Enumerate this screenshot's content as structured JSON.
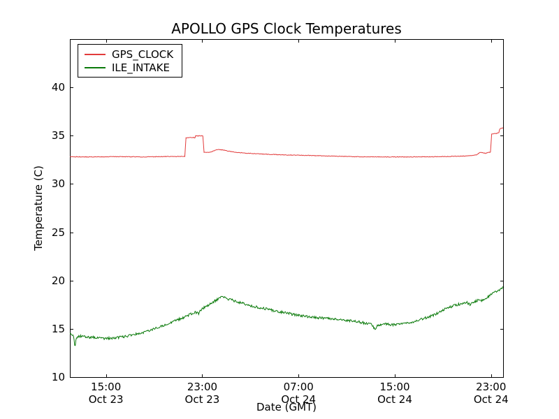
{
  "chart_data": {
    "type": "line",
    "title": "APOLLO GPS Clock Temperatures",
    "xlabel": "Date (GMT)",
    "ylabel": "Temperature (C)",
    "ylim": [
      10,
      45
    ],
    "xlim_hours": [
      0,
      36
    ],
    "x_axis_note": "hours measured from Oct 23 12:00 GMT",
    "grid": false,
    "yticks": [
      10,
      15,
      20,
      25,
      30,
      35,
      40
    ],
    "xticks": [
      {
        "hour": 3,
        "time": "15:00",
        "date": "Oct 23"
      },
      {
        "hour": 11,
        "time": "23:00",
        "date": "Oct 23"
      },
      {
        "hour": 19,
        "time": "07:00",
        "date": "Oct 24"
      },
      {
        "hour": 27,
        "time": "15:00",
        "date": "Oct 24"
      },
      {
        "hour": 35,
        "time": "23:00",
        "date": "Oct 24"
      }
    ],
    "legend": {
      "position": "upper-left",
      "entries": [
        "GPS_CLOCK",
        "ILE_INTAKE"
      ]
    },
    "series": [
      {
        "name": "GPS_CLOCK",
        "color": "#e23b3b",
        "noise": 0.03,
        "points": [
          [
            0,
            32.82
          ],
          [
            2,
            32.8
          ],
          [
            4,
            32.83
          ],
          [
            6,
            32.8
          ],
          [
            8,
            32.84
          ],
          [
            9.55,
            32.85
          ],
          [
            9.65,
            34.78
          ],
          [
            10.3,
            34.82
          ],
          [
            10.38,
            34.7
          ],
          [
            10.45,
            34.98
          ],
          [
            11.05,
            34.98
          ],
          [
            11.15,
            33.28
          ],
          [
            11.7,
            33.3
          ],
          [
            12.3,
            33.58
          ],
          [
            12.8,
            33.5
          ],
          [
            13.5,
            33.32
          ],
          [
            14.5,
            33.2
          ],
          [
            16,
            33.1
          ],
          [
            18,
            33.0
          ],
          [
            20,
            32.95
          ],
          [
            22,
            32.88
          ],
          [
            24,
            32.82
          ],
          [
            26,
            32.8
          ],
          [
            28,
            32.8
          ],
          [
            30,
            32.82
          ],
          [
            31.5,
            32.85
          ],
          [
            33,
            32.9
          ],
          [
            33.8,
            33.0
          ],
          [
            34.1,
            33.28
          ],
          [
            34.5,
            33.18
          ],
          [
            34.95,
            33.3
          ],
          [
            35.05,
            35.18
          ],
          [
            35.45,
            35.22
          ],
          [
            35.55,
            35.3
          ],
          [
            35.65,
            35.3
          ],
          [
            35.72,
            35.72
          ],
          [
            36,
            35.8
          ]
        ]
      },
      {
        "name": "ILE_INTAKE",
        "color": "#0a7a0a",
        "noise": 0.13,
        "points": [
          [
            0,
            14.45
          ],
          [
            0.3,
            14.25
          ],
          [
            0.42,
            13.1
          ],
          [
            0.55,
            14.15
          ],
          [
            1,
            14.25
          ],
          [
            1.5,
            14.15
          ],
          [
            2,
            14.1
          ],
          [
            2.5,
            14.05
          ],
          [
            3,
            14.0
          ],
          [
            3.5,
            14.05
          ],
          [
            4,
            14.1
          ],
          [
            4.5,
            14.2
          ],
          [
            5,
            14.3
          ],
          [
            5.5,
            14.45
          ],
          [
            6,
            14.6
          ],
          [
            6.5,
            14.8
          ],
          [
            7,
            15.0
          ],
          [
            7.5,
            15.2
          ],
          [
            8,
            15.45
          ],
          [
            8.5,
            15.7
          ],
          [
            9,
            15.95
          ],
          [
            9.5,
            16.2
          ],
          [
            10,
            16.5
          ],
          [
            10.4,
            16.75
          ],
          [
            10.7,
            16.6
          ],
          [
            11,
            17.1
          ],
          [
            11.4,
            17.35
          ],
          [
            11.8,
            17.7
          ],
          [
            12.2,
            18.0
          ],
          [
            12.55,
            18.25
          ],
          [
            12.8,
            18.3
          ],
          [
            13.1,
            18.1
          ],
          [
            13.5,
            17.95
          ],
          [
            14,
            17.75
          ],
          [
            14.5,
            17.6
          ],
          [
            15,
            17.4
          ],
          [
            15.5,
            17.25
          ],
          [
            16,
            17.15
          ],
          [
            16.5,
            17.0
          ],
          [
            17,
            16.85
          ],
          [
            17.5,
            16.75
          ],
          [
            18,
            16.65
          ],
          [
            18.5,
            16.5
          ],
          [
            19,
            16.4
          ],
          [
            19.5,
            16.3
          ],
          [
            20,
            16.2
          ],
          [
            20.5,
            16.15
          ],
          [
            21,
            16.1
          ],
          [
            21.5,
            16.05
          ],
          [
            22,
            16.0
          ],
          [
            22.5,
            15.95
          ],
          [
            23,
            15.9
          ],
          [
            23.5,
            15.8
          ],
          [
            24,
            15.7
          ],
          [
            24.5,
            15.6
          ],
          [
            25,
            15.5
          ],
          [
            25.2,
            15.3
          ],
          [
            25.35,
            14.85
          ],
          [
            25.55,
            15.35
          ],
          [
            26,
            15.5
          ],
          [
            26.5,
            15.45
          ],
          [
            27,
            15.4
          ],
          [
            27.5,
            15.5
          ],
          [
            28,
            15.6
          ],
          [
            28.5,
            15.7
          ],
          [
            29,
            15.9
          ],
          [
            29.5,
            16.1
          ],
          [
            30,
            16.3
          ],
          [
            30.5,
            16.6
          ],
          [
            31,
            16.95
          ],
          [
            31.5,
            17.2
          ],
          [
            32,
            17.45
          ],
          [
            32.5,
            17.6
          ],
          [
            33,
            17.7
          ],
          [
            33.3,
            17.5
          ],
          [
            33.6,
            17.8
          ],
          [
            34,
            18.0
          ],
          [
            34.3,
            17.9
          ],
          [
            34.6,
            18.2
          ],
          [
            35,
            18.55
          ],
          [
            35.3,
            18.75
          ],
          [
            35.6,
            18.9
          ],
          [
            35.8,
            19.1
          ],
          [
            36,
            19.3
          ]
        ]
      }
    ]
  },
  "page": {
    "background": "#ffffff",
    "axes_color": "#000000"
  }
}
